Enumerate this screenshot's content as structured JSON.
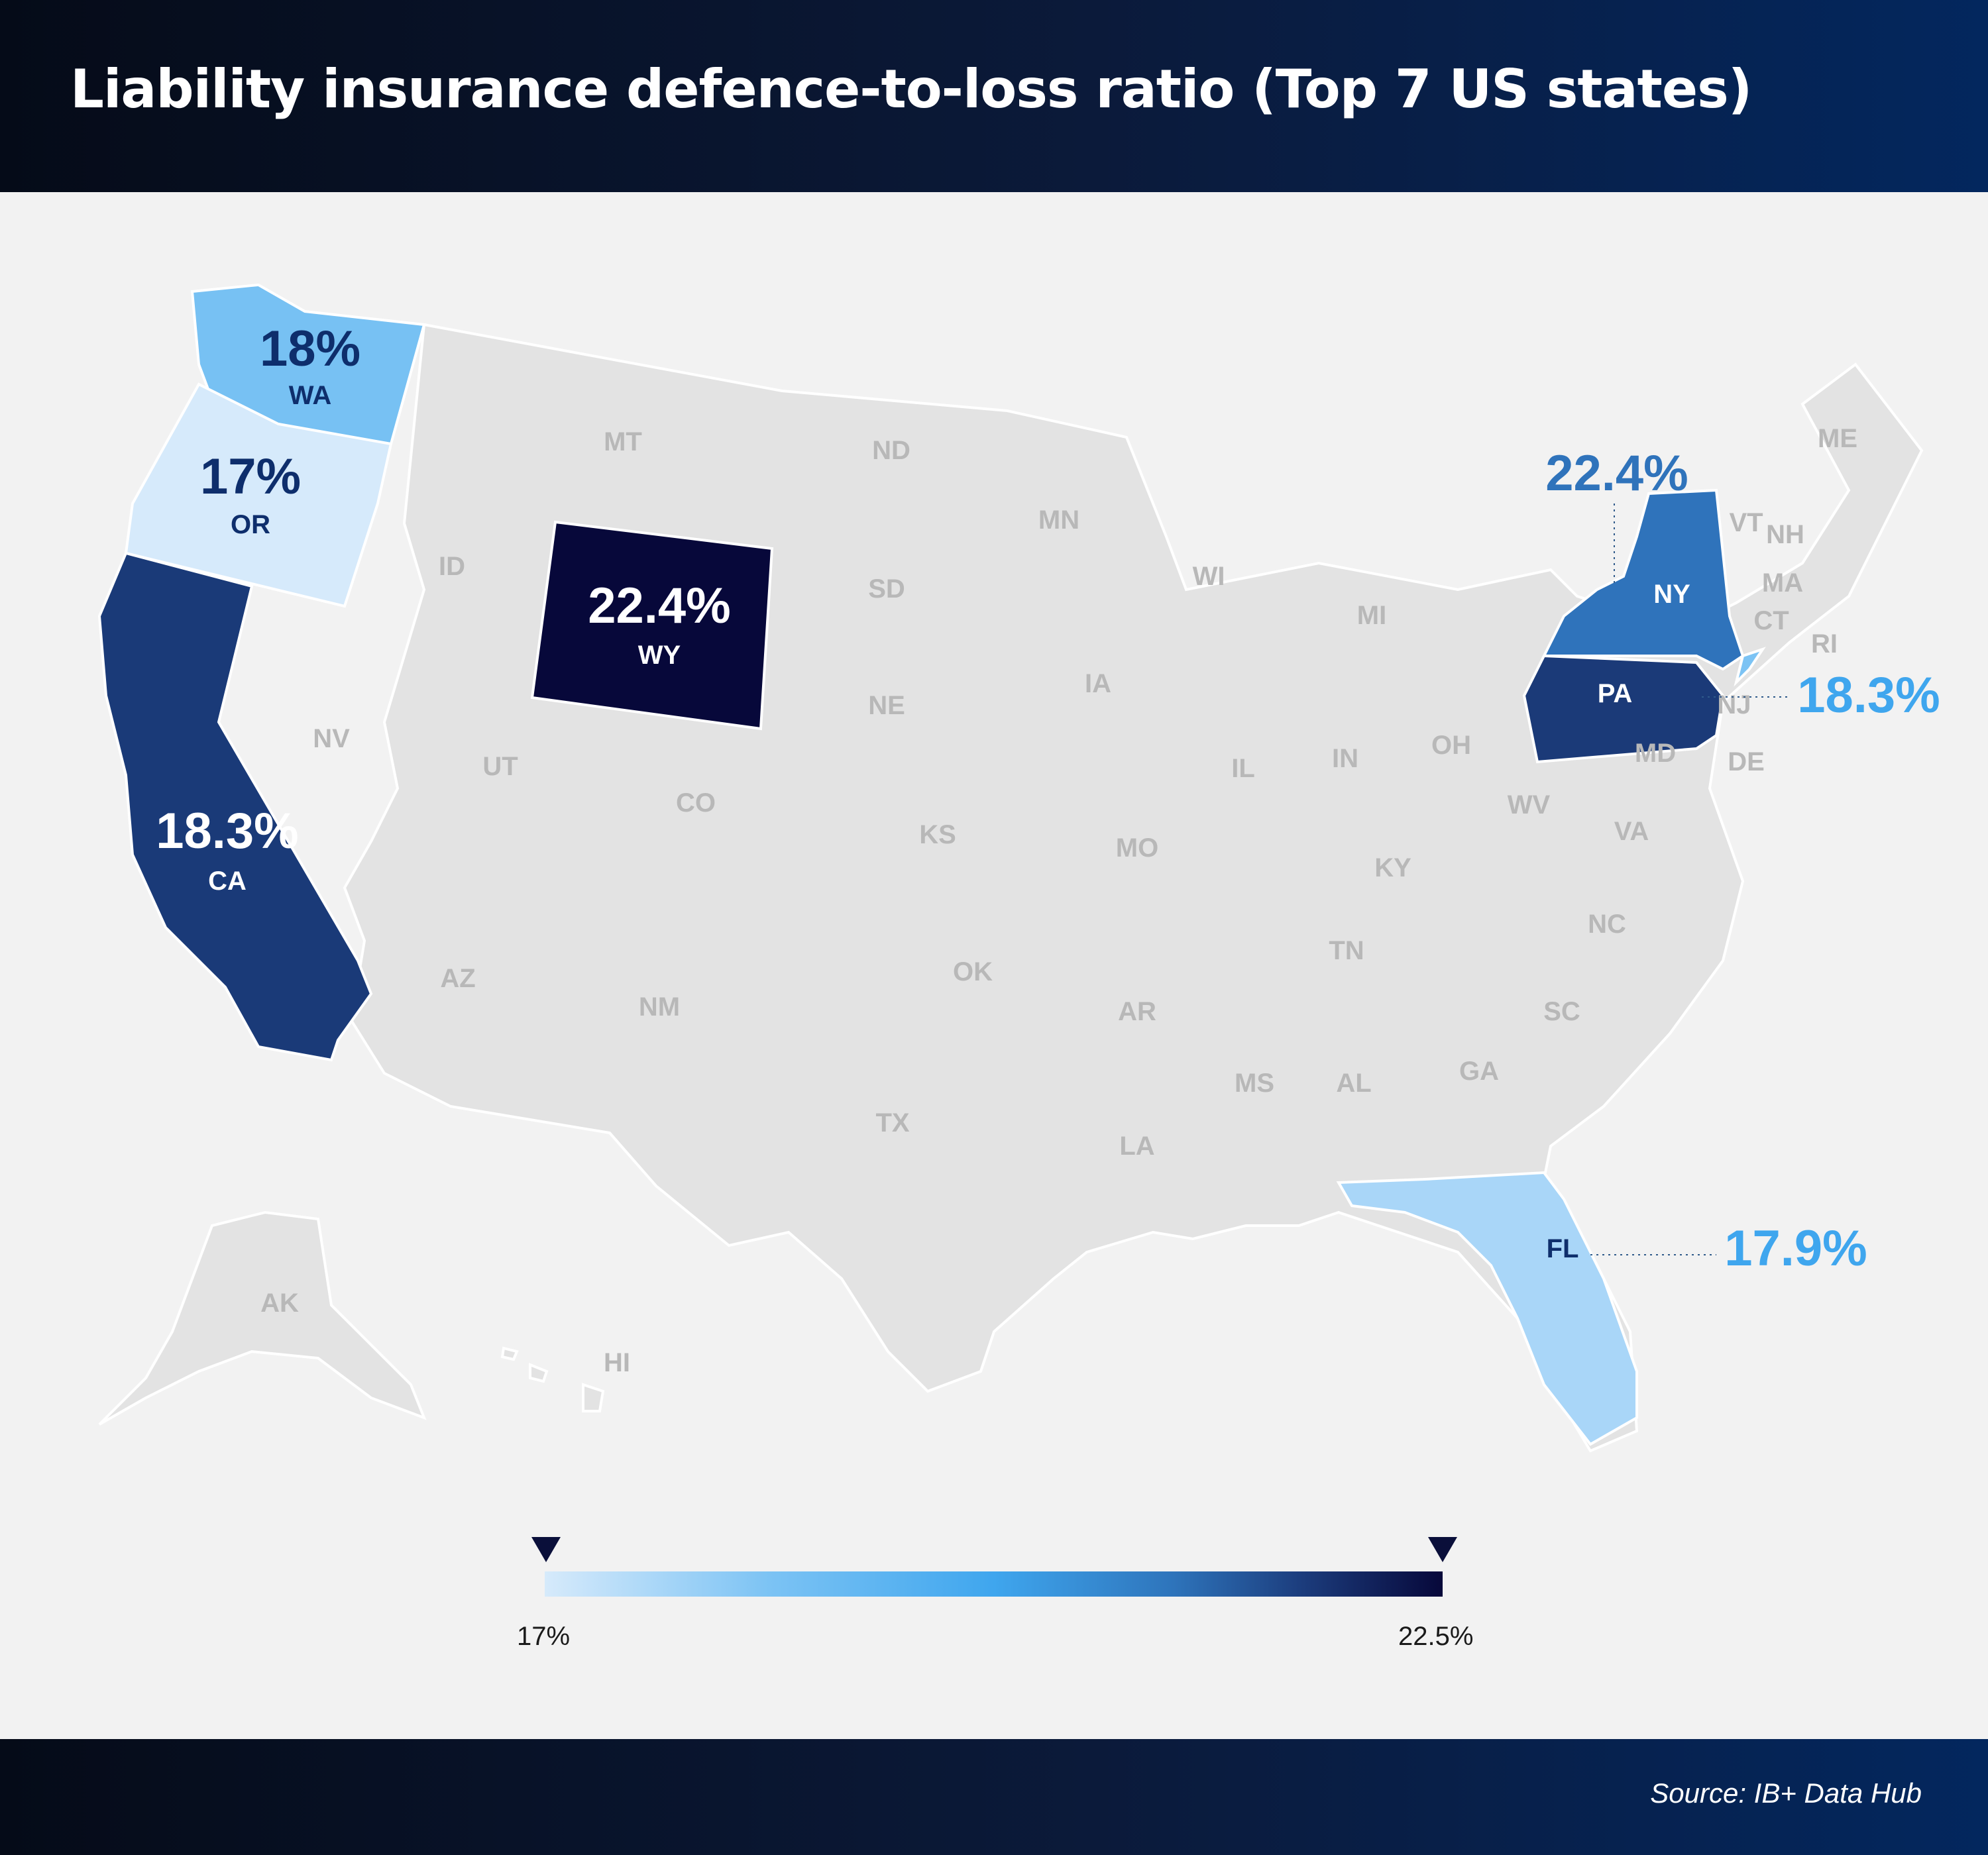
{
  "title": "Liability insurance defence-to-loss ratio (Top 7 US states)",
  "source": "Source: IB+ Data Hub",
  "legend": {
    "min_label": "17%",
    "max_label": "22.5%",
    "min_value": 17,
    "max_value": 22.5,
    "colors": [
      "#d6eafb",
      "#7cc3f4",
      "#3fa6ee",
      "#2e74bb",
      "#1b3a7a",
      "#07083a"
    ]
  },
  "map": {
    "highlighted": [
      {
        "abbr": "WA",
        "value_label": "18%",
        "value": 18,
        "color": "#77c1f3"
      },
      {
        "abbr": "OR",
        "value_label": "17%",
        "value": 17,
        "color": "#d6eafb"
      },
      {
        "abbr": "CA",
        "value_label": "18.3%",
        "value": 18.3,
        "color": "#1a3a78"
      },
      {
        "abbr": "WY",
        "value_label": "22.4%",
        "value": 22.4,
        "color": "#07083a"
      },
      {
        "abbr": "NY",
        "value_label": "22.4%",
        "value": 22.4,
        "color": "#2f73bb"
      },
      {
        "abbr": "PA",
        "value_label": "18.3%",
        "value": 18.3,
        "color": "#1b3a78"
      },
      {
        "abbr": "FL",
        "value_label": "17.9%",
        "value": 17.9,
        "color": "#a9d6f8"
      }
    ],
    "other_states": [
      "MT",
      "ND",
      "MN",
      "ME",
      "ID",
      "SD",
      "WI",
      "MI",
      "VT",
      "NH",
      "MA",
      "CT",
      "RI",
      "NV",
      "UT",
      "CO",
      "NE",
      "IA",
      "IL",
      "IN",
      "OH",
      "NJ",
      "MD",
      "DE",
      "WV",
      "VA",
      "KS",
      "MO",
      "KY",
      "NC",
      "TN",
      "AZ",
      "NM",
      "OK",
      "AR",
      "SC",
      "MS",
      "AL",
      "GA",
      "TX",
      "LA",
      "AK",
      "HI"
    ],
    "base_color": "#e3e3e3",
    "label_color": "#b8b8b8"
  }
}
